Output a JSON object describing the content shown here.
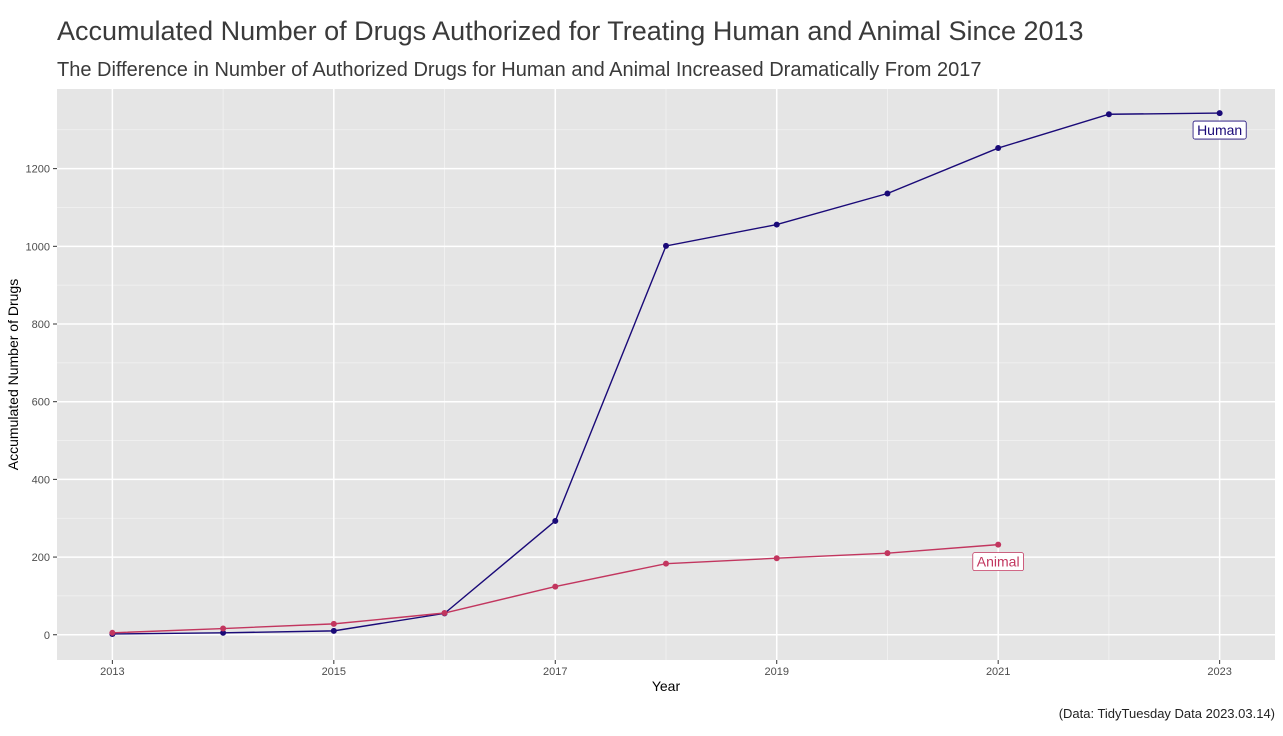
{
  "chart_data": {
    "type": "line",
    "title": "Accumulated Number of Drugs Authorized for Treating Human and Animal Since 2013",
    "subtitle": "The Difference in Number of Authorized Drugs for Human and Animal Increased Dramatically From 2017",
    "xlabel": "Year",
    "ylabel": "Accumulated Number of Drugs",
    "caption": "(Data: TidyTuesday Data 2023.03.14)",
    "xlim": [
      2012.5,
      2023.5
    ],
    "ylim": [
      -65,
      1405
    ],
    "x_ticks": [
      2013,
      2015,
      2017,
      2019,
      2021,
      2023
    ],
    "x_tick_labels": [
      "2013",
      "2015",
      "2017",
      "2019",
      "2021",
      "2023"
    ],
    "y_ticks": [
      0,
      200,
      400,
      600,
      800,
      1000,
      1200
    ],
    "y_tick_labels": [
      "0",
      "200",
      "400",
      "600",
      "800",
      "1000",
      "1200"
    ],
    "grid": true,
    "legend": "none",
    "series": [
      {
        "name": "Human",
        "color": "#1a0a78",
        "x": [
          2013,
          2014,
          2015,
          2016,
          2017,
          2018,
          2019,
          2020,
          2021,
          2022,
          2023
        ],
        "y": [
          2,
          5,
          10,
          55,
          293,
          1001,
          1056,
          1136,
          1253,
          1340,
          1343
        ]
      },
      {
        "name": "Animal",
        "color": "#c2365f",
        "x": [
          2013,
          2014,
          2015,
          2016,
          2017,
          2018,
          2019,
          2020,
          2021
        ],
        "y": [
          5,
          16,
          28,
          56,
          124,
          183,
          197,
          210,
          232
        ]
      }
    ]
  }
}
